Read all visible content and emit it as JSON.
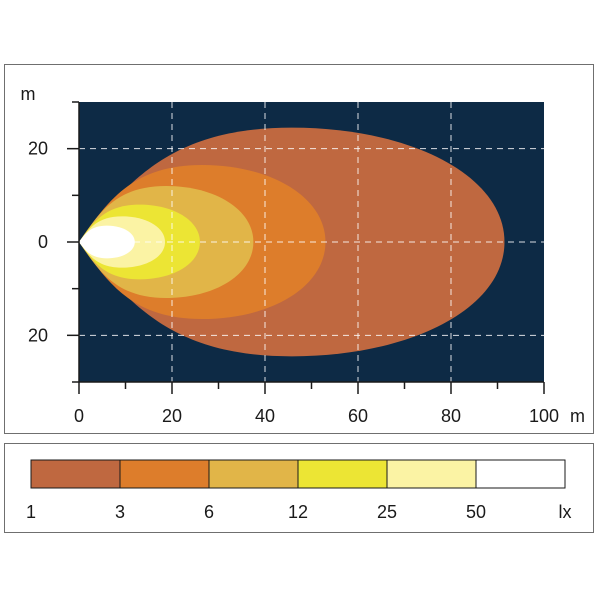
{
  "chart_data": {
    "type": "heatmap",
    "title": "",
    "xlabel": "m",
    "ylabel": "m",
    "xlim": [
      0,
      100
    ],
    "ylim": [
      -30,
      30
    ],
    "grid": true,
    "background_color": "#0d2a45",
    "x_ticks": [
      {
        "value": 0,
        "label": "0"
      },
      {
        "value": 20,
        "label": "20"
      },
      {
        "value": 40,
        "label": "40"
      },
      {
        "value": 60,
        "label": "60"
      },
      {
        "value": 80,
        "label": "80"
      },
      {
        "value": 100,
        "label": "100"
      }
    ],
    "y_ticks": [
      {
        "value": 20,
        "label": "20"
      },
      {
        "value": 0,
        "label": "0"
      },
      {
        "value": -20,
        "label": "20"
      }
    ],
    "contours": [
      {
        "lux": 1,
        "x_start": 0,
        "x_max": 91.5,
        "half_width": 24.5,
        "color": "#bf6840"
      },
      {
        "lux": 3,
        "x_start": 0,
        "x_max": 53,
        "half_width": 16.5,
        "color": "#dd7d2b"
      },
      {
        "lux": 6,
        "x_start": 0,
        "x_max": 37.5,
        "half_width": 12,
        "color": "#e1b548"
      },
      {
        "lux": 12,
        "x_start": 0,
        "x_max": 26,
        "half_width": 8,
        "color": "#ece534"
      },
      {
        "lux": 25,
        "x_start": 0,
        "x_max": 18.5,
        "half_width": 5.5,
        "color": "#fbf3a4"
      },
      {
        "lux": 50,
        "x_start": 0,
        "x_max": 12,
        "half_width": 3.5,
        "color": "#ffffff"
      }
    ],
    "legend": {
      "unit": "lx",
      "bins": [
        {
          "label": "1",
          "color": "#bf6840"
        },
        {
          "label": "3",
          "color": "#dd7d2b"
        },
        {
          "label": "6",
          "color": "#e1b548"
        },
        {
          "label": "12",
          "color": "#ece534"
        },
        {
          "label": "25",
          "color": "#fbf3a4"
        },
        {
          "label": "50",
          "color": "#ffffff"
        }
      ]
    }
  }
}
